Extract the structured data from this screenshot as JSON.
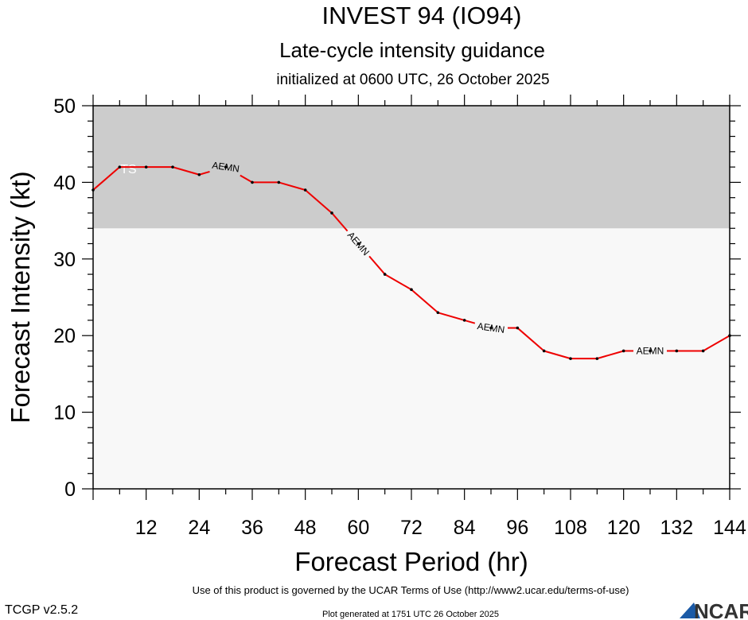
{
  "title": "INVEST 94 (IO94)",
  "subtitle": "Late-cycle intensity guidance",
  "subtitle2": "initialized at 0600 UTC, 26 October 2025",
  "footer": {
    "terms": "Use of this product is governed by the UCAR Terms of Use (http://www2.ucar.edu/terms-of-use)",
    "version": "TCGP v2.5.2",
    "generated": "Plot generated at 1751 UTC   26 October 2025",
    "logo_text": "NCAR"
  },
  "chart_data": {
    "type": "line",
    "xlabel": "Forecast Period (hr)",
    "ylabel": "Forecast Intensity (kt)",
    "xlim": [
      0,
      144
    ],
    "ylim": [
      0,
      50
    ],
    "xticks": [
      12,
      24,
      36,
      48,
      60,
      72,
      84,
      96,
      108,
      120,
      132,
      144
    ],
    "yticks": [
      0,
      10,
      20,
      30,
      40,
      50
    ],
    "shaded_region": {
      "label": "TS",
      "from_kt": 34,
      "to_kt": 50,
      "color": "#cccccc"
    },
    "background_color": "#f8f8f8",
    "series": [
      {
        "name": "AEMN",
        "color": "#ee0000",
        "x": [
          0,
          6,
          12,
          18,
          24,
          30,
          36,
          42,
          48,
          54,
          60,
          66,
          72,
          78,
          84,
          90,
          96,
          102,
          108,
          114,
          120,
          126,
          132,
          138,
          144
        ],
        "y": [
          39,
          42,
          42,
          42,
          41,
          42,
          40,
          40,
          39,
          36,
          32,
          28,
          26,
          23,
          22,
          21,
          21,
          18,
          17,
          17,
          18,
          18,
          18,
          18,
          20
        ],
        "label_at_hours": [
          30,
          60,
          90,
          126
        ]
      }
    ]
  }
}
